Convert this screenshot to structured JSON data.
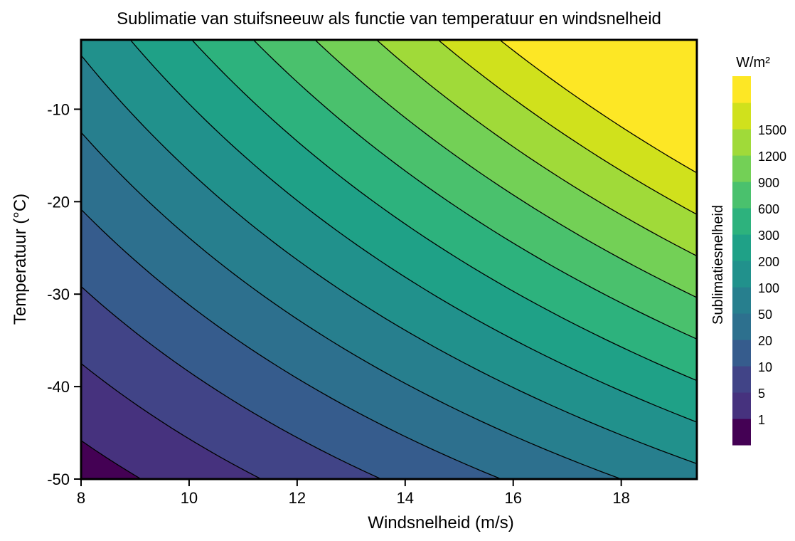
{
  "chart_data": {
    "type": "contour",
    "title": "Sublimatie van stuifsneeuw als functie van temperatuur en windsnelheid",
    "xlabel": "Windsnelheid (m/s)",
    "ylabel": "Temperatuur (°C)",
    "xlim": [
      8,
      19.4
    ],
    "ylim": [
      -50,
      -2.5
    ],
    "xticks": [
      8,
      10,
      12,
      14,
      16,
      18
    ],
    "yticks": [
      -10,
      -20,
      -30,
      -40,
      -50
    ],
    "xtick_labels": [
      "8",
      "10",
      "12",
      "14",
      "16",
      "18"
    ],
    "ytick_labels": [
      "-10",
      "-20",
      "-30",
      "-40",
      "-50"
    ],
    "grid": false,
    "colormap": "viridis",
    "colorbar": {
      "title": "Sublimatiesnelheid",
      "unit": "W/m²",
      "levels": [
        1,
        5,
        10,
        20,
        50,
        100,
        200,
        300,
        600,
        900,
        1200,
        1500
      ],
      "labels": [
        "1",
        "5",
        "10",
        "20",
        "50",
        "100",
        "200",
        "300",
        "600",
        "900",
        "1200",
        "1500"
      ],
      "colors": [
        "#440154",
        "#46327e",
        "#414487",
        "#365c8d",
        "#2d708e",
        "#277f8e",
        "#21918c",
        "#1fa187",
        "#2db27d",
        "#4ac16d",
        "#73d056",
        "#a0da39",
        "#d0e11c",
        "#fde725"
      ]
    }
  }
}
